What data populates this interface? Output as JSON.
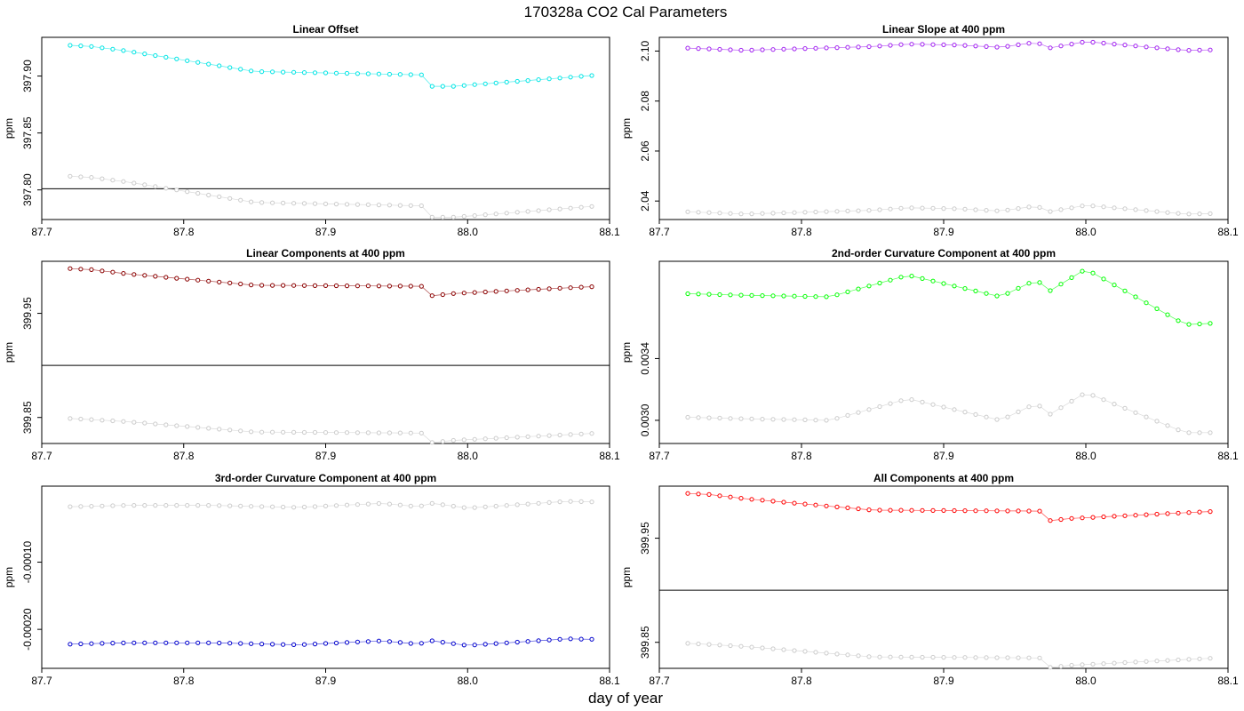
{
  "figure": {
    "title": "170328a   CO2 Cal Parameters",
    "xlabel": "day of year"
  },
  "chart_data": [
    {
      "type": "scatter",
      "title": "Linear Offset",
      "ylabel": "ppm",
      "xlim": [
        87.7,
        88.1
      ],
      "ylim": [
        397.774,
        397.934
      ],
      "xticks": [
        "87.7",
        "87.8",
        "87.9",
        "88.0",
        "88.1"
      ],
      "yticks": [
        "397.80",
        "397.85",
        "397.90"
      ],
      "hline": 397.801,
      "series": [
        {
          "color": "#00e5e5",
          "start": 397.927,
          "keys": [
            [
              87.72,
              397.927
            ],
            [
              87.735,
              397.926
            ],
            [
              87.76,
              397.922
            ],
            [
              87.85,
              397.904
            ],
            [
              87.97,
              397.901
            ],
            [
              87.975,
              397.891
            ],
            [
              87.99,
              397.891
            ],
            [
              88.093,
              397.901
            ]
          ]
        },
        {
          "color": "#cccccc",
          "start": 397.812,
          "keys": [
            [
              87.72,
              397.812
            ],
            [
              87.735,
              397.811
            ],
            [
              87.76,
              397.807
            ],
            [
              87.85,
              397.789
            ],
            [
              87.97,
              397.786
            ],
            [
              87.975,
              397.776
            ],
            [
              87.99,
              397.776
            ],
            [
              88.093,
              397.786
            ]
          ]
        }
      ]
    },
    {
      "type": "scatter",
      "title": "Linear Slope at 400 ppm",
      "ylabel": "ppm",
      "xlim": [
        87.7,
        88.1
      ],
      "ylim": [
        2.0326,
        2.1055
      ],
      "xticks": [
        "87.7",
        "87.8",
        "87.9",
        "88.0",
        "88.1"
      ],
      "yticks": [
        "2.04",
        "2.06",
        "2.08",
        "2.10"
      ],
      "hline": null,
      "series": [
        {
          "color": "#a020f0",
          "start": 2.1012,
          "keys": [
            [
              87.72,
              2.1012
            ],
            [
              87.76,
              2.1003
            ],
            [
              87.85,
              2.1018
            ],
            [
              87.875,
              2.1028
            ],
            [
              87.91,
              2.1024
            ],
            [
              87.94,
              2.1015
            ],
            [
              87.965,
              2.1035
            ],
            [
              87.975,
              2.1013
            ],
            [
              88.0,
              2.1038
            ],
            [
              88.07,
              2.1003
            ],
            [
              88.093,
              2.1005
            ]
          ]
        },
        {
          "color": "#cccccc",
          "start": 2.0357,
          "keys": [
            [
              87.72,
              2.0357
            ],
            [
              87.76,
              2.0348
            ],
            [
              87.85,
              2.0363
            ],
            [
              87.875,
              2.0373
            ],
            [
              87.91,
              2.0369
            ],
            [
              87.94,
              2.036
            ],
            [
              87.965,
              2.038
            ],
            [
              87.975,
              2.0358
            ],
            [
              88.0,
              2.0383
            ],
            [
              88.07,
              2.0348
            ],
            [
              88.093,
              2.035
            ]
          ]
        }
      ]
    },
    {
      "type": "scatter",
      "title": "Linear Components at 400 ppm",
      "ylabel": "ppm",
      "xlim": [
        87.7,
        88.1
      ],
      "ylim": [
        399.825,
        400.0
      ],
      "xticks": [
        "87.7",
        "87.8",
        "87.9",
        "88.0",
        "88.1"
      ],
      "yticks": [
        "399.85",
        "399.95"
      ],
      "hline": 399.9,
      "series": [
        {
          "color": "#8b0000",
          "start": 399.993,
          "keys": [
            [
              87.72,
              399.993
            ],
            [
              87.735,
              399.992
            ],
            [
              87.76,
              399.988
            ],
            [
              87.85,
              399.977
            ],
            [
              87.97,
              399.976
            ],
            [
              87.975,
              399.967
            ],
            [
              87.99,
              399.969
            ],
            [
              88.093,
              399.976
            ]
          ]
        },
        {
          "color": "#cccccc",
          "start": 399.849,
          "keys": [
            [
              87.72,
              399.849
            ],
            [
              87.735,
              399.848
            ],
            [
              87.76,
              399.846
            ],
            [
              87.85,
              399.836
            ],
            [
              87.97,
              399.835
            ],
            [
              87.975,
              399.826
            ],
            [
              87.99,
              399.828
            ],
            [
              88.093,
              399.835
            ]
          ]
        }
      ]
    },
    {
      "type": "scatter",
      "title": "2nd-order Curvature Component at 400 ppm",
      "ylabel": "ppm",
      "xlim": [
        87.7,
        88.1
      ],
      "ylim": [
        0.00285,
        0.00403
      ],
      "xticks": [
        "87.7",
        "87.8",
        "87.9",
        "88.0",
        "88.1"
      ],
      "yticks": [
        "0.0030",
        "0.0034"
      ],
      "hline": null,
      "series": [
        {
          "color": "#00ff00",
          "start": 0.00382,
          "keys": [
            [
              87.72,
              0.00382
            ],
            [
              87.76,
              0.00381
            ],
            [
              87.82,
              0.0038
            ],
            [
              87.875,
              0.00394
            ],
            [
              87.94,
              0.0038
            ],
            [
              87.965,
              0.00391
            ],
            [
              87.975,
              0.00384
            ],
            [
              88.0,
              0.00398
            ],
            [
              88.07,
              0.00362
            ],
            [
              88.093,
              0.00363
            ]
          ]
        },
        {
          "color": "#cccccc",
          "start": 0.00302,
          "keys": [
            [
              87.72,
              0.00302
            ],
            [
              87.76,
              0.00301
            ],
            [
              87.82,
              0.003
            ],
            [
              87.875,
              0.00314
            ],
            [
              87.94,
              0.003
            ],
            [
              87.965,
              0.00311
            ],
            [
              87.975,
              0.00304
            ],
            [
              88.0,
              0.00318
            ],
            [
              88.07,
              0.00292
            ],
            [
              88.093,
              0.00292
            ]
          ]
        }
      ]
    },
    {
      "type": "scatter",
      "title": "3rd-order Curvature Component at 400 ppm",
      "ylabel": "ppm",
      "xlim": [
        87.7,
        88.1
      ],
      "ylim": [
        -0.000258,
        1.31e-05
      ],
      "xticks": [
        "87.7",
        "87.8",
        "87.9",
        "88.0",
        "88.1"
      ],
      "yticks": [
        "-0.00010",
        "-0.00020"
      ],
      "hline": null,
      "series": [
        {
          "color": "#0000cd",
          "start": -0.000222,
          "keys": [
            [
              87.72,
              -0.000222
            ],
            [
              87.76,
              -0.00022
            ],
            [
              87.82,
              -0.00022
            ],
            [
              87.88,
              -0.000223
            ],
            [
              87.94,
              -0.000217
            ],
            [
              87.965,
              -0.000222
            ],
            [
              87.975,
              -0.000217
            ],
            [
              88.0,
              -0.000224
            ],
            [
              88.07,
              -0.000214
            ],
            [
              88.093,
              -0.000215
            ]
          ]
        },
        {
          "color": "#cccccc",
          "start": -1.75e-05,
          "keys": [
            [
              87.72,
              -1.75e-05
            ],
            [
              87.76,
              -1.55e-05
            ],
            [
              87.82,
              -1.55e-05
            ],
            [
              87.88,
              -1.85e-05
            ],
            [
              87.94,
              -1.25e-05
            ],
            [
              87.965,
              -1.75e-05
            ],
            [
              87.975,
              -1.25e-05
            ],
            [
              88.0,
              -1.95e-05
            ],
            [
              88.07,
              -9.5e-06
            ],
            [
              88.093,
              -1.05e-05
            ]
          ]
        }
      ]
    },
    {
      "type": "scatter",
      "title": "All Components at 400 ppm",
      "ylabel": "ppm",
      "xlim": [
        87.7,
        88.1
      ],
      "ylim": [
        399.825,
        400.0
      ],
      "xticks": [
        "87.7",
        "87.8",
        "87.9",
        "88.0",
        "88.1"
      ],
      "yticks": [
        "399.85",
        "399.95"
      ],
      "hline": 399.9,
      "series": [
        {
          "color": "#ff0000",
          "start": 399.993,
          "keys": [
            [
              87.72,
              399.993
            ],
            [
              87.735,
              399.992
            ],
            [
              87.76,
              399.988
            ],
            [
              87.85,
              399.977
            ],
            [
              87.97,
              399.976
            ],
            [
              87.975,
              399.967
            ],
            [
              87.99,
              399.969
            ],
            [
              88.093,
              399.976
            ]
          ]
        },
        {
          "color": "#cccccc",
          "start": 399.849,
          "keys": [
            [
              87.72,
              399.849
            ],
            [
              87.735,
              399.848
            ],
            [
              87.76,
              399.846
            ],
            [
              87.85,
              399.836
            ],
            [
              87.97,
              399.835
            ],
            [
              87.975,
              399.826
            ],
            [
              87.99,
              399.828
            ],
            [
              88.093,
              399.835
            ]
          ]
        }
      ]
    }
  ]
}
